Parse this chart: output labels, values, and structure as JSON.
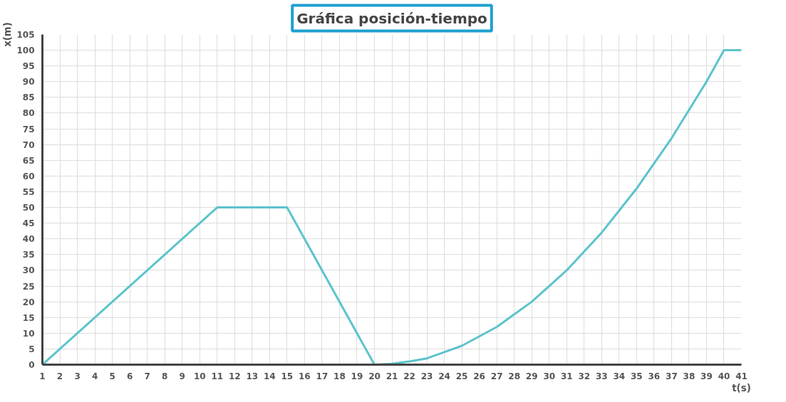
{
  "chart_data": {
    "type": "line",
    "title": "Gráfica posición-tiempo",
    "xlabel": "t(s)",
    "ylabel": "x(m)",
    "x": [
      1,
      11,
      15,
      20,
      21,
      22,
      23,
      24,
      25,
      26,
      27,
      28,
      29,
      30,
      31,
      32,
      33,
      34,
      35,
      36,
      37,
      38,
      39,
      40,
      41
    ],
    "series": [
      {
        "color": "#5cc3cc",
        "values": [
          0,
          50,
          50,
          0,
          0.3,
          1,
          2,
          4,
          6,
          9,
          12,
          16,
          20,
          25,
          30,
          36,
          42,
          49,
          56,
          64,
          72,
          81,
          90,
          100,
          100
        ]
      }
    ],
    "xlim": [
      1,
      41
    ],
    "ylim": [
      0,
      105
    ],
    "xticks": [
      1,
      2,
      3,
      4,
      5,
      6,
      7,
      8,
      9,
      10,
      11,
      12,
      13,
      14,
      15,
      16,
      17,
      18,
      19,
      20,
      21,
      22,
      23,
      24,
      25,
      26,
      27,
      28,
      29,
      30,
      31,
      32,
      33,
      34,
      35,
      36,
      37,
      38,
      39,
      40,
      41
    ],
    "yticks": [
      0,
      5,
      10,
      15,
      20,
      25,
      30,
      35,
      40,
      45,
      50,
      55,
      60,
      65,
      70,
      75,
      80,
      85,
      90,
      95,
      100,
      105
    ],
    "grid": true,
    "marker": "none",
    "line_style": "solid"
  }
}
